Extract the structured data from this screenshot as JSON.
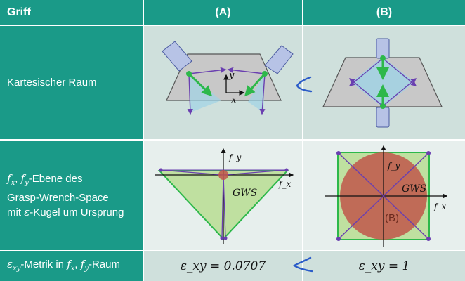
{
  "header": {
    "col0": "Griff",
    "colA": "(A)",
    "colB": "(B)"
  },
  "rows": {
    "cartesian": {
      "label": "Kartesischer Raum"
    },
    "gws": {
      "label_line1_sym": "f",
      "label_line1_rest": "-Ebene des",
      "label_line2": "Grasp-Wrench-Space",
      "label_line3_a": "mit ",
      "label_line3_b": "-Kugel um Ursprung"
    },
    "metric": {
      "label_rest": "-Metrik in ",
      "label_raum": "-Raum",
      "valueA": "ε_xy = 0.0707",
      "valueB": "ε_xy = 1"
    }
  },
  "diagramA": {
    "y_label": "y",
    "x_label": "x",
    "fy_label": "f_y",
    "fx_label": "f_x",
    "gws_label": "GWS"
  },
  "diagramB": {
    "fy_label": "f_y",
    "fx_label": "f_x",
    "gws_label": "GWS",
    "b_label": "(B)"
  },
  "colors": {
    "teal": "#1a9a88",
    "green": "#2db84a",
    "purple": "#6a3fb0",
    "ball": "#c0564a",
    "hull": "#bfe0a0"
  }
}
